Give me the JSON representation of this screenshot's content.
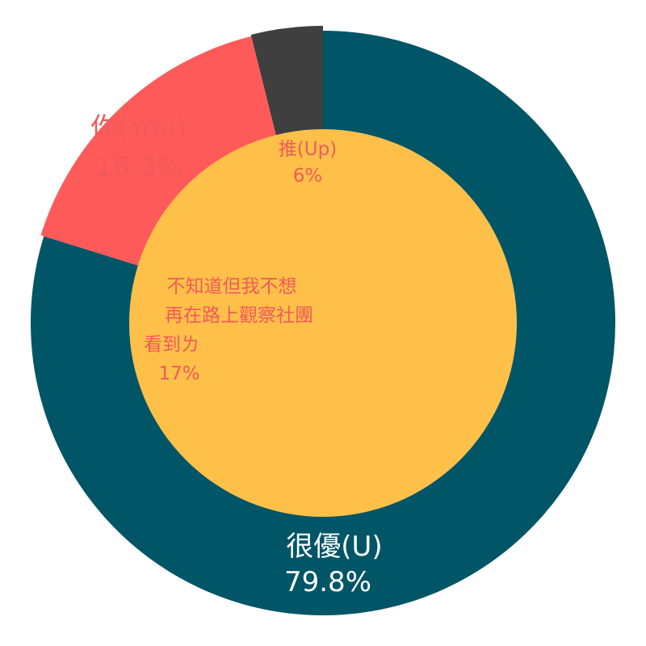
{
  "chart_data": {
    "type": "pie",
    "title": "",
    "outer_ring": [
      {
        "label": "很優(U)",
        "value_label": "79.8%",
        "value": 79.8,
        "color": "#005566",
        "text_color": "#ffffff"
      },
      {
        "label": "你(You)",
        "value_label": "16.3%",
        "value": 16.3,
        "color": "#ff5a5a",
        "text_color": "#f15a5a"
      },
      {
        "label": "",
        "value_label": "",
        "value": 3.9,
        "color": "#3f3f3f",
        "text_color": "#3f3f3f"
      }
    ],
    "inner_disc": {
      "color": "#ffc04a",
      "entries": [
        {
          "label": "推(Up)",
          "value_label": "6%",
          "value": 6,
          "text_color": "#f05a5a"
        },
        {
          "label_lines": [
            "不知道但我不想",
            "再在路上觀察社團",
            "看到ㄌ"
          ],
          "value_label": "17%",
          "value": 17,
          "text_color": "#f05a5a"
        }
      ]
    }
  }
}
